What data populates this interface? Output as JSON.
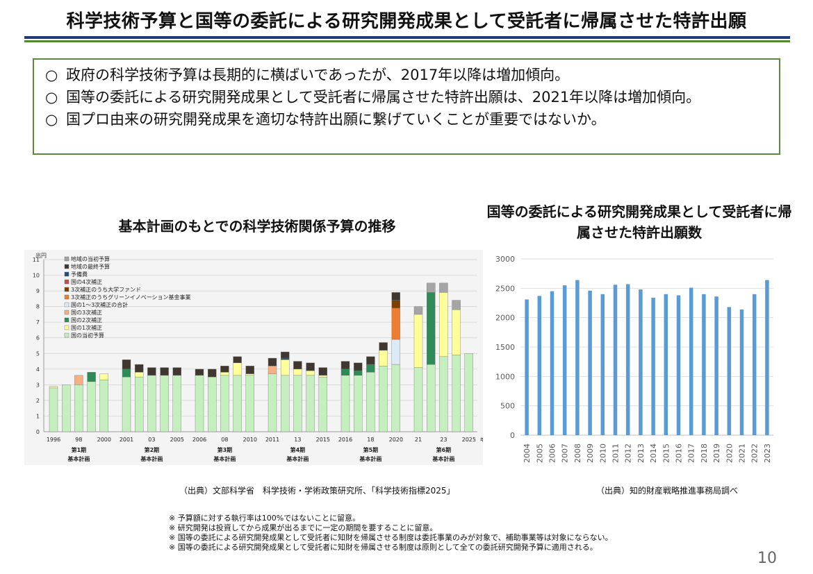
{
  "title": "科学技術予算と国等の委託による研究開発成果として受託者に帰属させた特許出願",
  "summary": [
    {
      "mark": "○",
      "text": "政府の科学技術予算は長期的に横ばいであったが、2017年以降は増加傾向。"
    },
    {
      "mark": "○",
      "text": "国等の委託による研究開発成果として受託者に帰属させた特許出願は、2021年以降は増加傾向。"
    },
    {
      "mark": "○",
      "text": "国プロ由来の研究開発成果を適切な特許出願に繋げていくことが重要ではないか。"
    }
  ],
  "chart_titles": {
    "left": "基本計画のもとでの科学技術関係予算の推移",
    "right": "国等の委託による研究開発成果として受託者に帰属させた特許出願数"
  },
  "sources": {
    "left": "（出典）文部科学省　科学技術・学術政策研究所、「科学技術指標2025」",
    "right": "（出典）知的財産戦略推進事務局調べ"
  },
  "notes": [
    "※ 予算額に対する執行率は100%ではないことに留意。",
    "※ 研究開発は投資してから成果が出るまでに一定の期間を要することに留意。",
    "※ 国等の委託による研究開発成果として受託者に知財を帰属させる制度は委託事業のみが対象で、補助事業等は対象にならない。",
    "※ 国等の委託による研究開発成果として受託者に知財を帰属させる制度は原則として全ての委託研究開発予算に適用される。"
  ],
  "page_number": "10",
  "chart_data": [
    {
      "type": "bar",
      "stacked": true,
      "unit_label": "兆円",
      "ylim": [
        0,
        11
      ],
      "yticks": [
        0,
        1,
        2,
        3,
        4,
        5,
        6,
        7,
        8,
        9,
        10,
        11
      ],
      "year_suffix": "年度",
      "legend_position": "top-left",
      "categories": [
        "1996",
        "1997",
        "1998",
        "1999",
        "2000",
        "2001",
        "2002",
        "2003",
        "2004",
        "2005",
        "2006",
        "2007",
        "2008",
        "2009",
        "2010",
        "2011",
        "2012",
        "2013",
        "2014",
        "2015",
        "2016",
        "2017",
        "2018",
        "2019",
        "2020",
        "2021",
        "2022",
        "2023",
        "2024",
        "2025"
      ],
      "x_tick_labels": [
        "1996",
        "",
        "98",
        "",
        "2000",
        "2001",
        "",
        "03",
        "",
        "2005",
        "2006",
        "",
        "08",
        "",
        "2010",
        "2011",
        "",
        "13",
        "",
        "2015",
        "2016",
        "",
        "18",
        "",
        "2020",
        "21",
        "",
        "23",
        "",
        "2025"
      ],
      "groups": [
        {
          "start": 0,
          "end": 4,
          "label": "第1期",
          "sublabel": "基本計画"
        },
        {
          "start": 5,
          "end": 9,
          "label": "第2期",
          "sublabel": "基本計画"
        },
        {
          "start": 10,
          "end": 14,
          "label": "第3期",
          "sublabel": "基本計画"
        },
        {
          "start": 15,
          "end": 19,
          "label": "第4期",
          "sublabel": "基本計画"
        },
        {
          "start": 20,
          "end": 24,
          "label": "第5期",
          "sublabel": "基本計画"
        },
        {
          "start": 25,
          "end": 29,
          "label": "第6期",
          "sublabel": "基本計画"
        }
      ],
      "series": [
        {
          "name": "国の当初予算",
          "color": "#c6efc0",
          "values": [
            2.8,
            3.0,
            3.0,
            3.2,
            3.3,
            3.5,
            3.5,
            3.6,
            3.6,
            3.6,
            3.6,
            3.5,
            3.6,
            3.6,
            3.6,
            3.7,
            3.6,
            3.6,
            3.6,
            3.5,
            3.6,
            3.6,
            3.8,
            4.2,
            4.3,
            4.1,
            4.3,
            4.8,
            4.9,
            5.0
          ]
        },
        {
          "name": "国の1次補正",
          "color": "#ffff99",
          "values": [
            0.1,
            0,
            0,
            0,
            0.4,
            0,
            0.3,
            0,
            0,
            0,
            0,
            0,
            0.2,
            0.8,
            0.1,
            0,
            1.0,
            0.4,
            0.3,
            0.1,
            0,
            0,
            0,
            1.0,
            0,
            3.4,
            0,
            4.1,
            2.9,
            0
          ]
        },
        {
          "name": "国の2次補正",
          "color": "#2e8b57",
          "values": [
            0,
            0,
            0,
            0.6,
            0,
            0.5,
            0,
            0,
            0,
            0,
            0,
            0,
            0,
            0,
            0,
            0,
            0,
            0,
            0,
            0,
            0.4,
            0.3,
            0.5,
            0,
            0,
            0,
            4.6,
            0,
            0,
            0
          ]
        },
        {
          "name": "国の3次補正",
          "color": "#f4b183",
          "values": [
            0,
            0,
            0.6,
            0,
            0,
            0,
            0,
            0,
            0,
            0,
            0,
            0,
            0,
            0,
            0,
            0.5,
            0,
            0,
            0,
            0,
            0,
            0,
            0,
            0,
            0,
            0,
            0,
            0,
            0,
            0
          ]
        },
        {
          "name": "国の1～3次補正の合計",
          "color": "#ddebf7",
          "values": [
            0,
            0,
            0,
            0,
            0,
            0,
            0,
            0,
            0,
            0,
            0,
            0,
            0,
            0,
            0,
            0,
            0,
            0,
            0,
            0,
            0,
            0,
            0,
            0,
            1.6,
            0,
            0,
            0,
            0,
            0
          ]
        },
        {
          "name": "3次補正のうちグリーンイノベーション基金事業",
          "color": "#ed7d31",
          "values": [
            0,
            0,
            0,
            0,
            0,
            0,
            0,
            0,
            0,
            0,
            0,
            0,
            0,
            0,
            0,
            0,
            0,
            0,
            0,
            0,
            0,
            0,
            0,
            0,
            2.0,
            0,
            0,
            0,
            0,
            0
          ]
        },
        {
          "name": "3次補正のうち大学ファンド",
          "color": "#7b3f00",
          "values": [
            0,
            0,
            0,
            0,
            0,
            0,
            0,
            0,
            0,
            0,
            0,
            0,
            0,
            0,
            0,
            0,
            0,
            0,
            0,
            0,
            0,
            0,
            0,
            0,
            0.5,
            0,
            0,
            0,
            0,
            0
          ]
        },
        {
          "name": "国の4次補正",
          "color": "#c0504d",
          "values": [
            0,
            0,
            0,
            0,
            0,
            0,
            0,
            0,
            0,
            0,
            0,
            0,
            0,
            0,
            0,
            0,
            0,
            0,
            0,
            0,
            0,
            0,
            0,
            0,
            0,
            0,
            0,
            0,
            0,
            0
          ]
        },
        {
          "name": "予備費",
          "color": "#1f4e79",
          "values": [
            0,
            0,
            0,
            0,
            0,
            0,
            0,
            0,
            0,
            0,
            0,
            0,
            0,
            0,
            0,
            0,
            0.1,
            0,
            0,
            0,
            0,
            0,
            0,
            0,
            0,
            0,
            0,
            0,
            0,
            0
          ]
        },
        {
          "name": "地域の最終予算",
          "color": "#403830",
          "values": [
            0,
            0,
            0,
            0,
            0,
            0.6,
            0.5,
            0.5,
            0.5,
            0.5,
            0.4,
            0.5,
            0.4,
            0.4,
            0.5,
            0.5,
            0.4,
            0.5,
            0.5,
            0.5,
            0.5,
            0.5,
            0.5,
            0.5,
            0.5,
            0,
            0,
            0,
            0,
            0
          ]
        },
        {
          "name": "地域の当初予算",
          "color": "#a5a5a5",
          "values": [
            0,
            0,
            0,
            0,
            0,
            0,
            0,
            0,
            0,
            0,
            0,
            0,
            0,
            0,
            0,
            0,
            0,
            0,
            0,
            0,
            0,
            0,
            0,
            0,
            0,
            0.5,
            0.6,
            0.6,
            0.6,
            0
          ]
        }
      ]
    },
    {
      "type": "bar",
      "ylim": [
        0,
        3000
      ],
      "yticks": [
        0,
        500,
        1000,
        1500,
        2000,
        2500,
        3000
      ],
      "grid": true,
      "color": "#5b9bd5",
      "categories": [
        "2004",
        "2005",
        "2006",
        "2007",
        "2008",
        "2009",
        "2010",
        "2011",
        "2012",
        "2013",
        "2014",
        "2015",
        "2016",
        "2017",
        "2018",
        "2019",
        "2020",
        "2021",
        "2022",
        "2023"
      ],
      "values": [
        2310,
        2370,
        2450,
        2550,
        2640,
        2460,
        2400,
        2560,
        2570,
        2480,
        2340,
        2400,
        2380,
        2510,
        2400,
        2360,
        2180,
        2140,
        2400,
        2640
      ]
    }
  ]
}
